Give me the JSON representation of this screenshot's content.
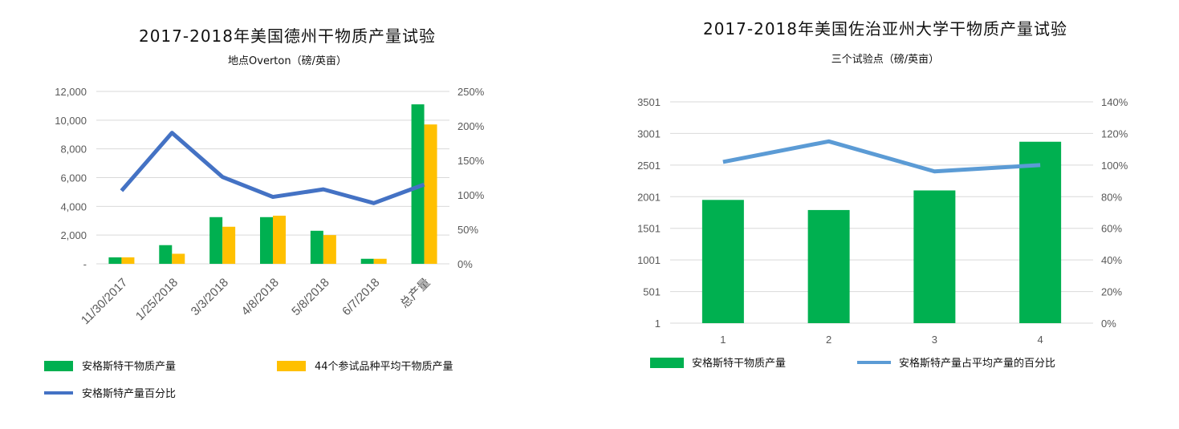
{
  "colors": {
    "green": "#00b050",
    "yellow": "#ffc000",
    "blue1": "#4472c4",
    "blue2": "#5b9bd5",
    "grid": "#d9d9d9"
  },
  "chart_data": [
    {
      "type": "bar+line",
      "title": "2017-2018年美国德州干物质产量试验",
      "subtitle": "地点Overton（磅/英亩）",
      "categories": [
        "11/30/2017",
        "1/25/2018",
        "3/3/2018",
        "4/8/2018",
        "5/8/2018",
        "6/7/2018",
        "总产量"
      ],
      "y_ticks": [
        "-",
        "2,000",
        "4,000",
        "6,000",
        "8,000",
        "10,000",
        "12,000"
      ],
      "ylim": [
        0,
        12000
      ],
      "y2_ticks": [
        "0%",
        "50%",
        "100%",
        "150%",
        "200%",
        "250%"
      ],
      "y2lim": [
        0,
        250
      ],
      "series": [
        {
          "name": "安格斯特干物质产量",
          "kind": "bar",
          "axis": "left",
          "values": [
            450,
            1300,
            3250,
            3250,
            2300,
            350,
            11100
          ]
        },
        {
          "name": "44个参试品种平均干物质产量",
          "kind": "bar",
          "axis": "left",
          "values": [
            450,
            700,
            2580,
            3350,
            2000,
            350,
            9700
          ]
        },
        {
          "name": "安格斯特产量百分比",
          "kind": "line",
          "axis": "right",
          "values": [
            106,
            190,
            126,
            97,
            108,
            88,
            115
          ]
        }
      ],
      "legend": "bottom"
    },
    {
      "type": "bar+line",
      "title": "2017-2018年美国佐治亚州大学干物质产量试验",
      "subtitle": "三个试验点（磅/英亩）",
      "categories": [
        "1",
        "2",
        "3",
        "4"
      ],
      "y_ticks": [
        "1",
        "501",
        "1001",
        "1501",
        "2001",
        "2501",
        "3001",
        "3501"
      ],
      "ylim": [
        1,
        3501
      ],
      "y2_ticks": [
        "0%",
        "20%",
        "40%",
        "60%",
        "80%",
        "100%",
        "120%",
        "140%"
      ],
      "y2lim": [
        0,
        140
      ],
      "series": [
        {
          "name": "安格斯特干物质产量",
          "kind": "bar",
          "axis": "left",
          "values": [
            1950,
            1790,
            2100,
            2870
          ]
        },
        {
          "name": "安格斯特产量占平均产量的百分比",
          "kind": "line",
          "axis": "right",
          "values": [
            102,
            115,
            96,
            100
          ]
        }
      ],
      "legend": "bottom"
    }
  ]
}
